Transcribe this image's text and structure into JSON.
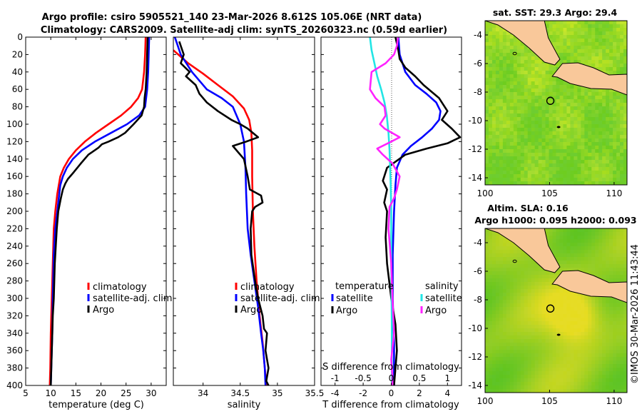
{
  "titles": {
    "line1": "Argo profile: csiro 5905521_140 23-Mar-2026 8.612S 105.06E (NRT data)",
    "line2": "Climatology: CARS2009. Satellite-adj clim: synTS_20260323.nc (0.59d earlier)"
  },
  "colors": {
    "climatology": "#ff0000",
    "satellite": "#0000ff",
    "argo": "#000000",
    "salinity_satellite": "#22e5e5",
    "salinity_argo": "#ff22ff",
    "land": "#f9c89a",
    "ocean": "#7fd326"
  },
  "chart_data": [
    {
      "id": "temperature",
      "type": "line",
      "xlabel": "temperature (deg C)",
      "ylabel": "",
      "xlim": [
        5,
        33
      ],
      "ylim": [
        400,
        0
      ],
      "xticks": [
        5,
        10,
        15,
        20,
        25,
        30
      ],
      "yticks": [
        0,
        20,
        40,
        60,
        80,
        100,
        120,
        140,
        160,
        180,
        200,
        220,
        240,
        260,
        280,
        300,
        320,
        340,
        360,
        380,
        400
      ],
      "legend": [
        "climatology",
        "satellite-adj. clim",
        "Argo"
      ],
      "series": [
        {
          "name": "climatology",
          "color": "#ff0000",
          "x": [
            28.9,
            28.8,
            28.6,
            28.2,
            27.4,
            26.0,
            24.0,
            21.5,
            19.0,
            16.8,
            15.0,
            13.6,
            12.6,
            11.9,
            11.3,
            10.9,
            10.6,
            10.4,
            10.2,
            10.0,
            9.9,
            9.8
          ],
          "y": [
            0,
            20,
            40,
            60,
            70,
            80,
            90,
            100,
            110,
            120,
            130,
            140,
            150,
            160,
            180,
            200,
            220,
            260,
            300,
            340,
            380,
            400
          ]
        },
        {
          "name": "satellite-adj. clim",
          "color": "#0000ff",
          "x": [
            29.6,
            29.5,
            29.4,
            29.2,
            28.8,
            27.6,
            25.2,
            22.0,
            18.8,
            16.2,
            14.4,
            13.2,
            12.4,
            11.9,
            11.3,
            10.9,
            10.6,
            10.4,
            10.3,
            10.1,
            10.0
          ],
          "y": [
            0,
            20,
            40,
            60,
            80,
            90,
            100,
            110,
            120,
            130,
            140,
            150,
            160,
            170,
            200,
            220,
            250,
            300,
            340,
            380,
            400
          ]
        },
        {
          "name": "Argo",
          "color": "#000000",
          "x": [
            29.3,
            29.2,
            29.1,
            28.9,
            28.7,
            28.6,
            28.1,
            26.5,
            24.8,
            23.4,
            21.5,
            20.2,
            19.5,
            17.5,
            16.0,
            14.6,
            13.4,
            12.9,
            12.4,
            12.0,
            11.5,
            11.2,
            11.0,
            10.8,
            10.7,
            10.6,
            10.4,
            10.3,
            10.2,
            10.1,
            10.0
          ],
          "y": [
            0,
            20,
            40,
            60,
            70,
            80,
            90,
            100,
            110,
            115,
            120,
            123,
            127,
            135,
            145,
            155,
            163,
            168,
            175,
            185,
            200,
            220,
            240,
            260,
            280,
            300,
            320,
            340,
            360,
            380,
            400
          ]
        }
      ]
    },
    {
      "id": "salinity",
      "type": "line",
      "xlabel": "salinity",
      "ylabel": "",
      "xlim": [
        33.6,
        35.5
      ],
      "ylim": [
        400,
        0
      ],
      "xticks": [
        34,
        34.5,
        35,
        35.5
      ],
      "xticklabels": [
        "34",
        "34.5",
        "35",
        "35.5"
      ],
      "yticks": [
        0,
        20,
        40,
        60,
        80,
        100,
        120,
        140,
        160,
        180,
        200,
        220,
        240,
        260,
        280,
        300,
        320,
        340,
        360,
        380,
        400
      ],
      "legend": [
        "climatology",
        "satellite-adj. clim",
        "Argo"
      ],
      "series": [
        {
          "name": "climatology",
          "color": "#ff0000",
          "x": [
            33.6,
            33.8,
            34.0,
            34.2,
            34.4,
            34.55,
            34.62,
            34.65,
            34.66,
            34.66,
            34.67,
            34.69,
            34.72,
            34.76,
            34.8,
            34.83,
            34.85
          ],
          "y": [
            15,
            30,
            42,
            55,
            68,
            82,
            95,
            110,
            130,
            160,
            200,
            240,
            280,
            320,
            350,
            380,
            400
          ]
        },
        {
          "name": "satellite-adj. clim",
          "color": "#0000ff",
          "x": [
            33.62,
            33.7,
            33.85,
            34.05,
            34.25,
            34.4,
            34.5,
            34.55,
            34.57,
            34.58,
            34.6,
            34.64,
            34.69,
            34.74,
            34.78,
            34.81,
            34.83,
            34.84
          ],
          "y": [
            0,
            20,
            40,
            60,
            70,
            80,
            100,
            120,
            150,
            180,
            220,
            250,
            280,
            310,
            340,
            360,
            380,
            400
          ]
        },
        {
          "name": "Argo",
          "color": "#000000",
          "x": [
            33.68,
            33.74,
            33.7,
            33.82,
            33.77,
            33.9,
            33.95,
            34.05,
            34.2,
            34.38,
            34.5,
            34.6,
            34.74,
            34.58,
            34.4,
            34.45,
            34.55,
            34.6,
            34.63,
            34.78,
            34.8,
            34.7,
            34.66,
            34.64,
            34.65,
            34.7,
            34.74,
            34.8,
            34.82,
            34.86,
            34.84,
            34.88,
            34.85,
            34.88
          ],
          "y": [
            5,
            20,
            30,
            40,
            45,
            55,
            65,
            75,
            85,
            95,
            100,
            105,
            115,
            120,
            125,
            130,
            140,
            160,
            175,
            182,
            190,
            195,
            200,
            220,
            250,
            280,
            300,
            320,
            335,
            340,
            360,
            380,
            395,
            400
          ]
        }
      ]
    },
    {
      "id": "differences",
      "type": "line",
      "xlabel": "T difference from climatology",
      "xlabel_top": "S difference from climatology",
      "xlim_T": [
        -5,
        5
      ],
      "xticks_T": [
        -4,
        -2,
        0,
        2,
        4
      ],
      "xlim_S": [
        -1.25,
        1.25
      ],
      "xticks_S": [
        -1,
        -0.5,
        0,
        0.5,
        1
      ],
      "xticklabels_S": [
        "-1",
        "-0.5",
        "0",
        "0.5",
        "1"
      ],
      "ylim": [
        400,
        0
      ],
      "yticks": [
        0,
        20,
        40,
        60,
        80,
        100,
        120,
        140,
        160,
        180,
        200,
        220,
        240,
        260,
        280,
        300,
        320,
        340,
        360,
        380,
        400
      ],
      "legend_temperature_title": "temperature",
      "legend_salinity_title": "salinity",
      "legend_temperature": [
        "satellite",
        "Argo"
      ],
      "legend_salinity": [
        "satellite",
        "Argo"
      ],
      "series": [
        {
          "name": "T satellite",
          "axis": "T",
          "color": "#0000ff",
          "x": [
            0.5,
            0.6,
            1.0,
            1.7,
            2.5,
            3.2,
            3.5,
            3.4,
            2.9,
            2.2,
            1.4,
            0.8,
            0.4,
            0.3,
            0.2,
            0.1,
            0.1,
            0.2,
            0.2
          ],
          "y": [
            0,
            20,
            40,
            55,
            65,
            75,
            85,
            95,
            105,
            115,
            125,
            135,
            150,
            170,
            200,
            250,
            300,
            350,
            400
          ]
        },
        {
          "name": "T Argo",
          "axis": "T",
          "color": "#000000",
          "x": [
            0.3,
            0.5,
            0.6,
            1.0,
            1.7,
            2.3,
            3.4,
            4.0,
            3.6,
            4.3,
            4.9,
            4.0,
            2.5,
            1.0,
            -0.3,
            -0.6,
            -0.3,
            -0.5,
            -0.3,
            -0.4,
            -0.3,
            0.0,
            0.3,
            0.4,
            0.3,
            0.2
          ],
          "y": [
            0,
            15,
            25,
            35,
            45,
            55,
            70,
            85,
            95,
            105,
            115,
            122,
            128,
            135,
            150,
            165,
            175,
            190,
            200,
            230,
            260,
            300,
            330,
            360,
            380,
            400
          ]
        },
        {
          "name": "S satellite",
          "axis": "S",
          "color": "#22e5e5",
          "x": [
            -0.38,
            -0.35,
            -0.3,
            -0.25,
            -0.18,
            -0.12,
            -0.08,
            -0.05,
            -0.03,
            -0.02,
            -0.01,
            0.0,
            0.0,
            0.01,
            0.01
          ],
          "y": [
            0,
            15,
            30,
            45,
            60,
            75,
            90,
            110,
            130,
            150,
            170,
            200,
            260,
            330,
            400
          ]
        },
        {
          "name": "S Argo",
          "axis": "S",
          "color": "#ff22ff",
          "x": [
            0.12,
            0.1,
            0.05,
            -0.1,
            -0.35,
            -0.38,
            -0.28,
            -0.12,
            -0.1,
            -0.2,
            -0.12,
            0.15,
            0.0,
            -0.25,
            -0.15,
            0.02,
            0.15,
            0.1,
            0.05,
            -0.03,
            -0.05,
            0.0,
            0.02,
            0.05,
            0.0,
            0.02,
            0.02
          ],
          "y": [
            0,
            10,
            20,
            30,
            40,
            60,
            70,
            80,
            90,
            100,
            105,
            115,
            120,
            128,
            135,
            145,
            160,
            175,
            185,
            195,
            220,
            260,
            300,
            340,
            370,
            390,
            400
          ]
        }
      ]
    },
    {
      "id": "sst_map",
      "type": "heatmap",
      "title": "sat. SST: 29.3 Argo: 29.4",
      "xlim": [
        100,
        111
      ],
      "ylim": [
        -14.5,
        -3
      ],
      "xticks": [
        100,
        105,
        110
      ],
      "yticks": [
        -4,
        -6,
        -8,
        -10,
        -12,
        -14
      ],
      "argo_position": {
        "lon": 105.06,
        "lat": -8.612
      }
    },
    {
      "id": "sla_map",
      "type": "heatmap",
      "title_line1": "Altim. SLA: 0.16",
      "title_line2": "Argo h1000: 0.095 h2000: 0.093",
      "xlim": [
        100,
        111
      ],
      "ylim": [
        -14.5,
        -3
      ],
      "xticks": [
        100,
        105,
        110
      ],
      "yticks": [
        -4,
        -6,
        -8,
        -10,
        -12,
        -14
      ],
      "argo_position": {
        "lon": 105.06,
        "lat": -8.612
      }
    }
  ],
  "footer": {
    "credit": "©IMOS 30-Mar-2026 11:43:44"
  }
}
